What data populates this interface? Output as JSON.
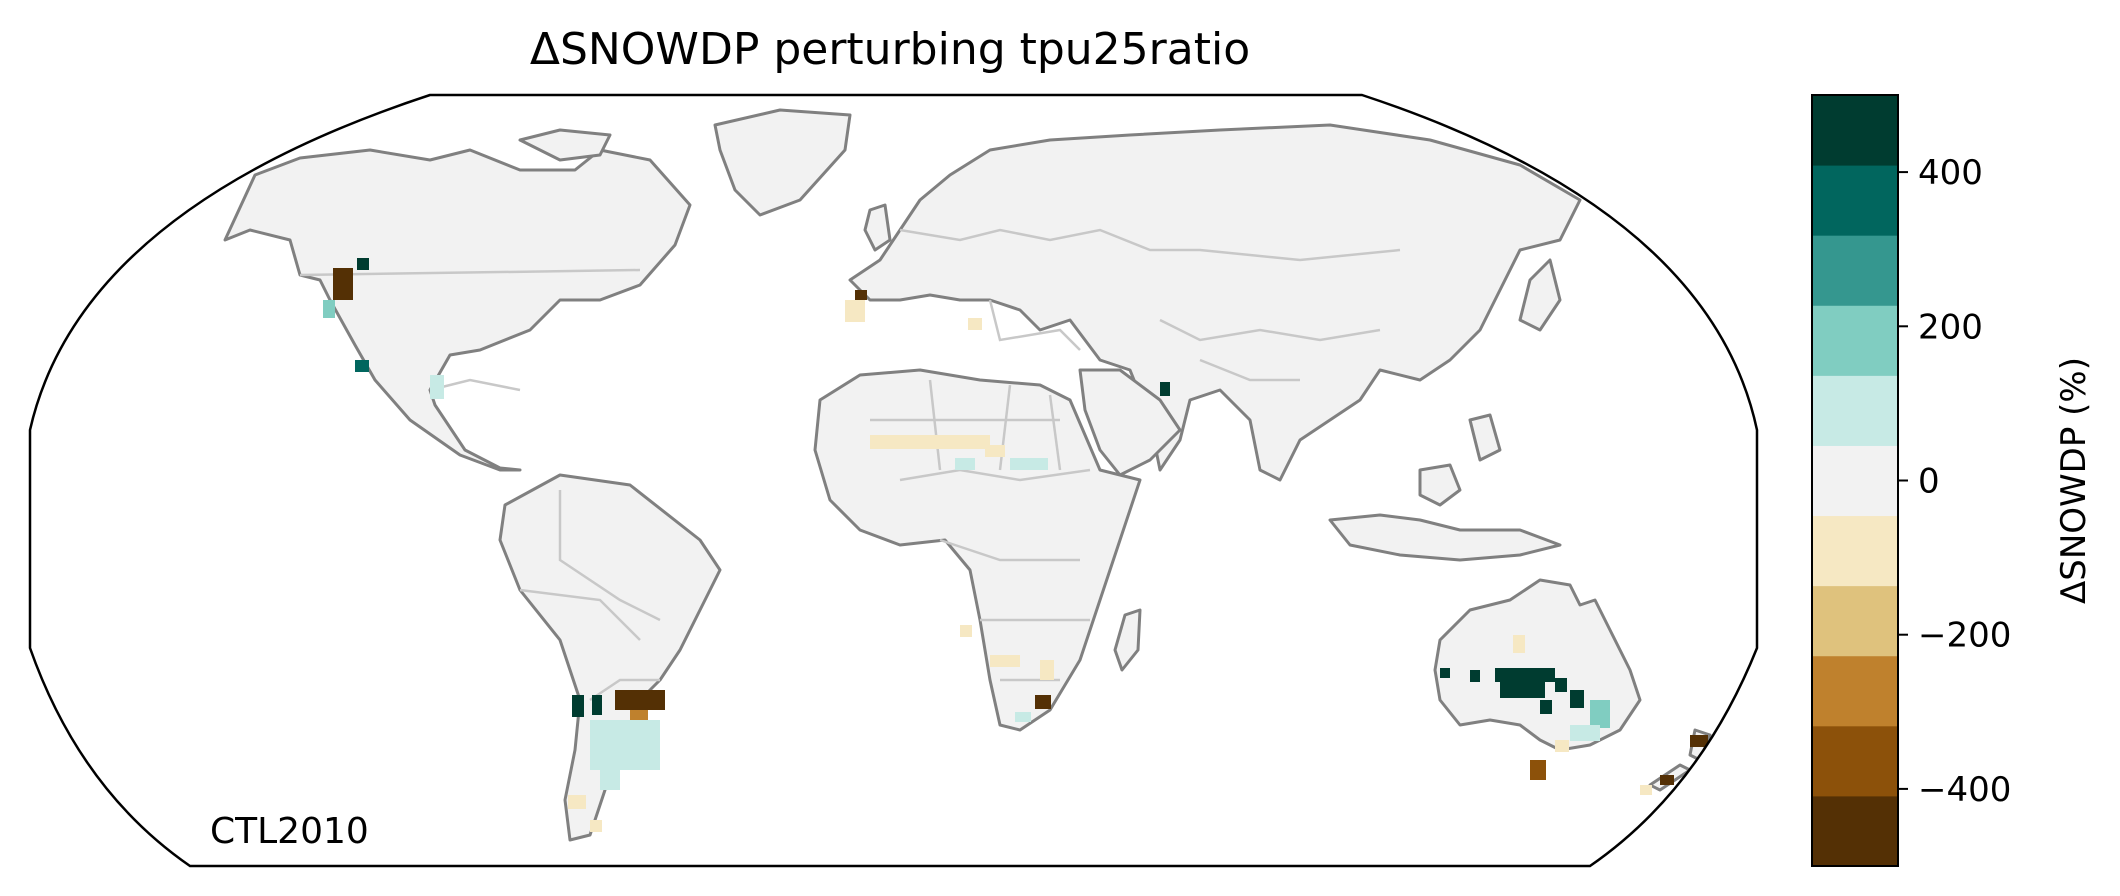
{
  "title": "ΔSNOWDP perturbing tpu25ratio",
  "panel_label": "CTL2010",
  "colorbar": {
    "label": "ΔSNOWDP (%)",
    "range": [
      -500,
      500
    ],
    "bin_width": 100,
    "ticks": [
      {
        "value": 400,
        "label": "400"
      },
      {
        "value": 200,
        "label": "200"
      },
      {
        "value": 0,
        "label": "0"
      },
      {
        "value": -200,
        "label": "−200"
      },
      {
        "value": -400,
        "label": "−400"
      }
    ],
    "colors": [
      "#543005",
      "#8c510a",
      "#bf812d",
      "#dfc27d",
      "#f6e8c3",
      "#f2f2f2",
      "#c7eae5",
      "#80cdc1",
      "#35978f",
      "#01665e",
      "#003c30"
    ]
  },
  "map": {
    "projection": "Robinson",
    "land_color": "#f2f2f2",
    "coastline_color": "#808080",
    "border_color": "#c8c8c8",
    "outline_color": "#000000"
  }
}
